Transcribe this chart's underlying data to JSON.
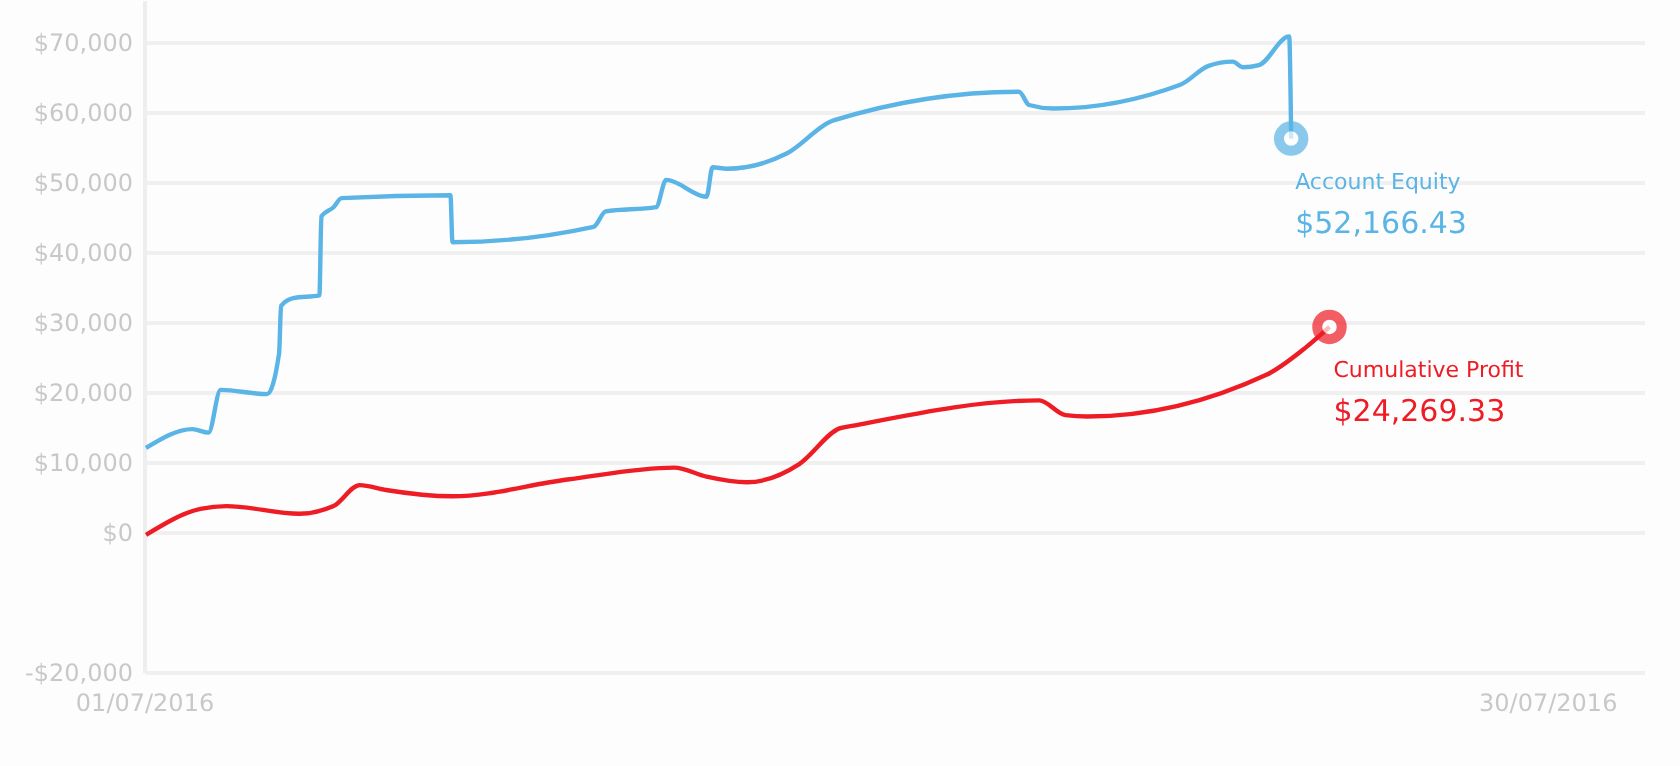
{
  "chart_data": {
    "type": "line",
    "xlim": [
      "2016-07-01",
      "2016-08-01"
    ],
    "xticks": [
      {
        "value": "2016-07-01",
        "label": "01/07/2016"
      },
      {
        "value": "2016-07-30",
        "label": "30/07/2016"
      }
    ],
    "ylim": [
      -20000,
      76000
    ],
    "yticks": [
      {
        "value": -20000,
        "label": "-$20,000"
      },
      {
        "value": 0,
        "label": "$0"
      },
      {
        "value": 10000,
        "label": "$10,000"
      },
      {
        "value": 20000,
        "label": "$20,000"
      },
      {
        "value": 30000,
        "label": "$30,000"
      },
      {
        "value": 40000,
        "label": "$40,000"
      },
      {
        "value": 50000,
        "label": "$50,000"
      },
      {
        "value": 60000,
        "label": "$60,000"
      },
      {
        "value": 70000,
        "label": "$70,000"
      }
    ],
    "grid": "y",
    "series": [
      {
        "name": "Account Equity",
        "color": "#5ab4e5",
        "x": [
          "2016-07-01T01:00",
          "2016-07-02T00:00",
          "2016-07-02T08:00",
          "2016-07-02T14:00",
          "2016-07-03T13:00",
          "2016-07-03T19:00",
          "2016-07-03T20:00",
          "2016-07-04T02:00",
          "2016-07-04T15:00",
          "2016-07-04T16:00",
          "2016-07-04T22:00",
          "2016-07-05T02:00",
          "2016-07-07T08:00",
          "2016-07-07T09:00",
          "2016-07-10T07:00",
          "2016-07-10T13:00",
          "2016-07-11T14:00",
          "2016-07-11T19:00",
          "2016-07-12T15:00",
          "2016-07-12T18:00",
          "2016-07-13T01:00",
          "2016-07-14T07:00",
          "2016-07-15T06:00",
          "2016-07-19T02:00",
          "2016-07-19T07:00",
          "2016-07-19T19:00",
          "2016-07-22T10:00",
          "2016-07-23T00:00",
          "2016-07-23T12:00",
          "2016-07-23T17:00",
          "2016-07-24T01:00",
          "2016-07-24T16:00",
          "2016-07-24T17:00"
        ],
        "values": [
          12000,
          14700,
          14200,
          20300,
          19700,
          25500,
          32300,
          33400,
          33800,
          45100,
          46400,
          47700,
          48100,
          41400,
          43600,
          45800,
          46400,
          50300,
          47900,
          52100,
          51900,
          54100,
          58800,
          62900,
          61000,
          60500,
          63900,
          66600,
          67200,
          66400,
          66700,
          70800,
          56200
        ]
      },
      {
        "name": "Cumulative Profit",
        "color": "#ee1c24",
        "x": [
          "2016-07-01T01:00",
          "2016-07-02T04:00",
          "2016-07-02T17:00",
          "2016-07-04T05:00",
          "2016-07-04T22:00",
          "2016-07-05T11:00",
          "2016-07-06T00:00",
          "2016-07-07T09:00",
          "2016-07-09T18:00",
          "2016-07-11T23:00",
          "2016-07-12T15:00",
          "2016-07-13T11:00",
          "2016-07-14T13:00",
          "2016-07-15T09:00",
          "2016-07-15T16:00",
          "2016-07-19T12:00",
          "2016-07-20T01:00",
          "2016-07-20T12:00",
          "2016-07-24T05:00",
          "2016-07-25T00:00",
          "2016-07-25T12:00"
        ],
        "values": [
          -400,
          3300,
          3700,
          2600,
          3700,
          6700,
          6000,
          5100,
          7500,
          9200,
          7900,
          7100,
          9700,
          14800,
          15200,
          18800,
          16700,
          16500,
          22500,
          26300,
          29300
        ]
      }
    ],
    "annotations": [
      {
        "text": "$52,166.43",
        "x": "2016-07-24T17:00",
        "y": 56200
      },
      {
        "text": "$24,269.33",
        "x": "2016-07-25T12:00",
        "y": 29300
      }
    ]
  }
}
